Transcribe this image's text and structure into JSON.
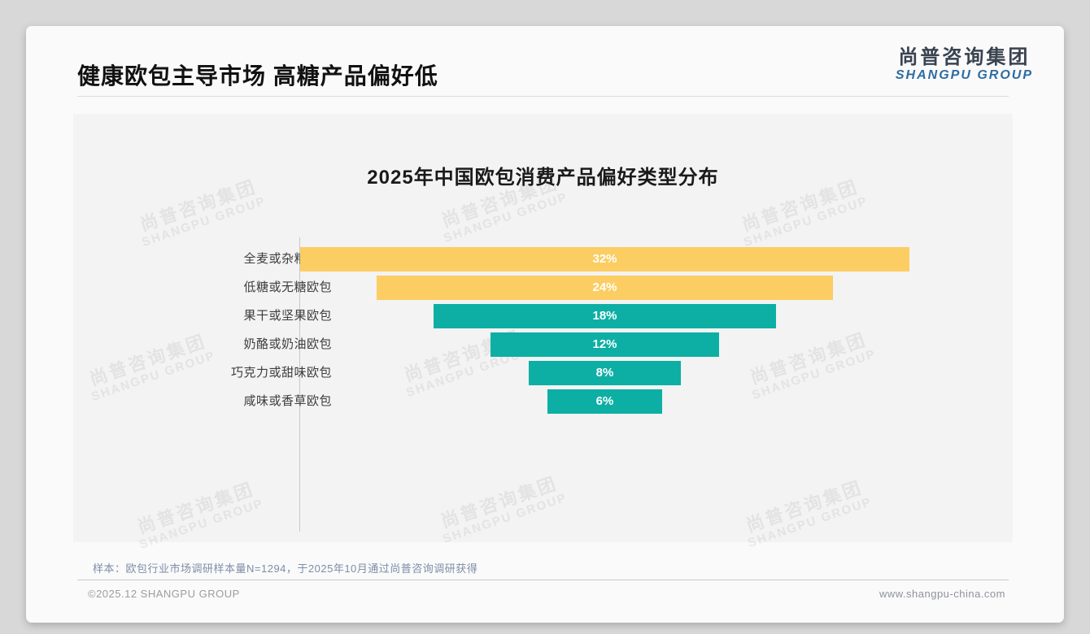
{
  "header": {
    "title": "健康欧包主导市场 高糖产品偏好低",
    "logo_cn": "尚普咨询集团",
    "logo_en": "SHANGPU GROUP"
  },
  "watermark": {
    "line1": "尚普咨询集团",
    "line2": "SHANGPU GROUP"
  },
  "chart_data": {
    "type": "bar",
    "variant": "horizontal-centered-funnel",
    "title": "2025年中国欧包消费产品偏好类型分布",
    "categories": [
      "全麦或杂粮欧包",
      "低糖或无糖欧包",
      "果干或坚果欧包",
      "奶酪或奶油欧包",
      "巧克力或甜味欧包",
      "咸味或香草欧包"
    ],
    "values": [
      32,
      24,
      18,
      12,
      8,
      6
    ],
    "value_labels": [
      "32%",
      "24%",
      "18%",
      "12%",
      "8%",
      "6%"
    ],
    "bar_colors": [
      "#fbcd62",
      "#fbcd62",
      "#0dafa4",
      "#0dafa4",
      "#0dafa4",
      "#0dafa4"
    ],
    "value_label_color": "#ffffff",
    "xlim": [
      0,
      32
    ],
    "grid": false,
    "legend": false,
    "axis_line_color": "#c9c9c9"
  },
  "footnote": {
    "sample_note": "样本：欧包行业市场调研样本量N=1294，于2025年10月通过尚普咨询调研获得"
  },
  "footer": {
    "left": "©2025.12 SHANGPU GROUP",
    "right": "www.shangpu-china.com"
  },
  "colors": {
    "bar_yellow": "#fbcd62",
    "bar_teal": "#0dafa4",
    "logo_blue": "#2d6ca2",
    "logo_dark": "#39434f",
    "note_text": "#7e8ea6",
    "card_bg": "#fafafa",
    "panel_bg": "#f2f3f2",
    "page_bg": "#d8d8d8"
  }
}
